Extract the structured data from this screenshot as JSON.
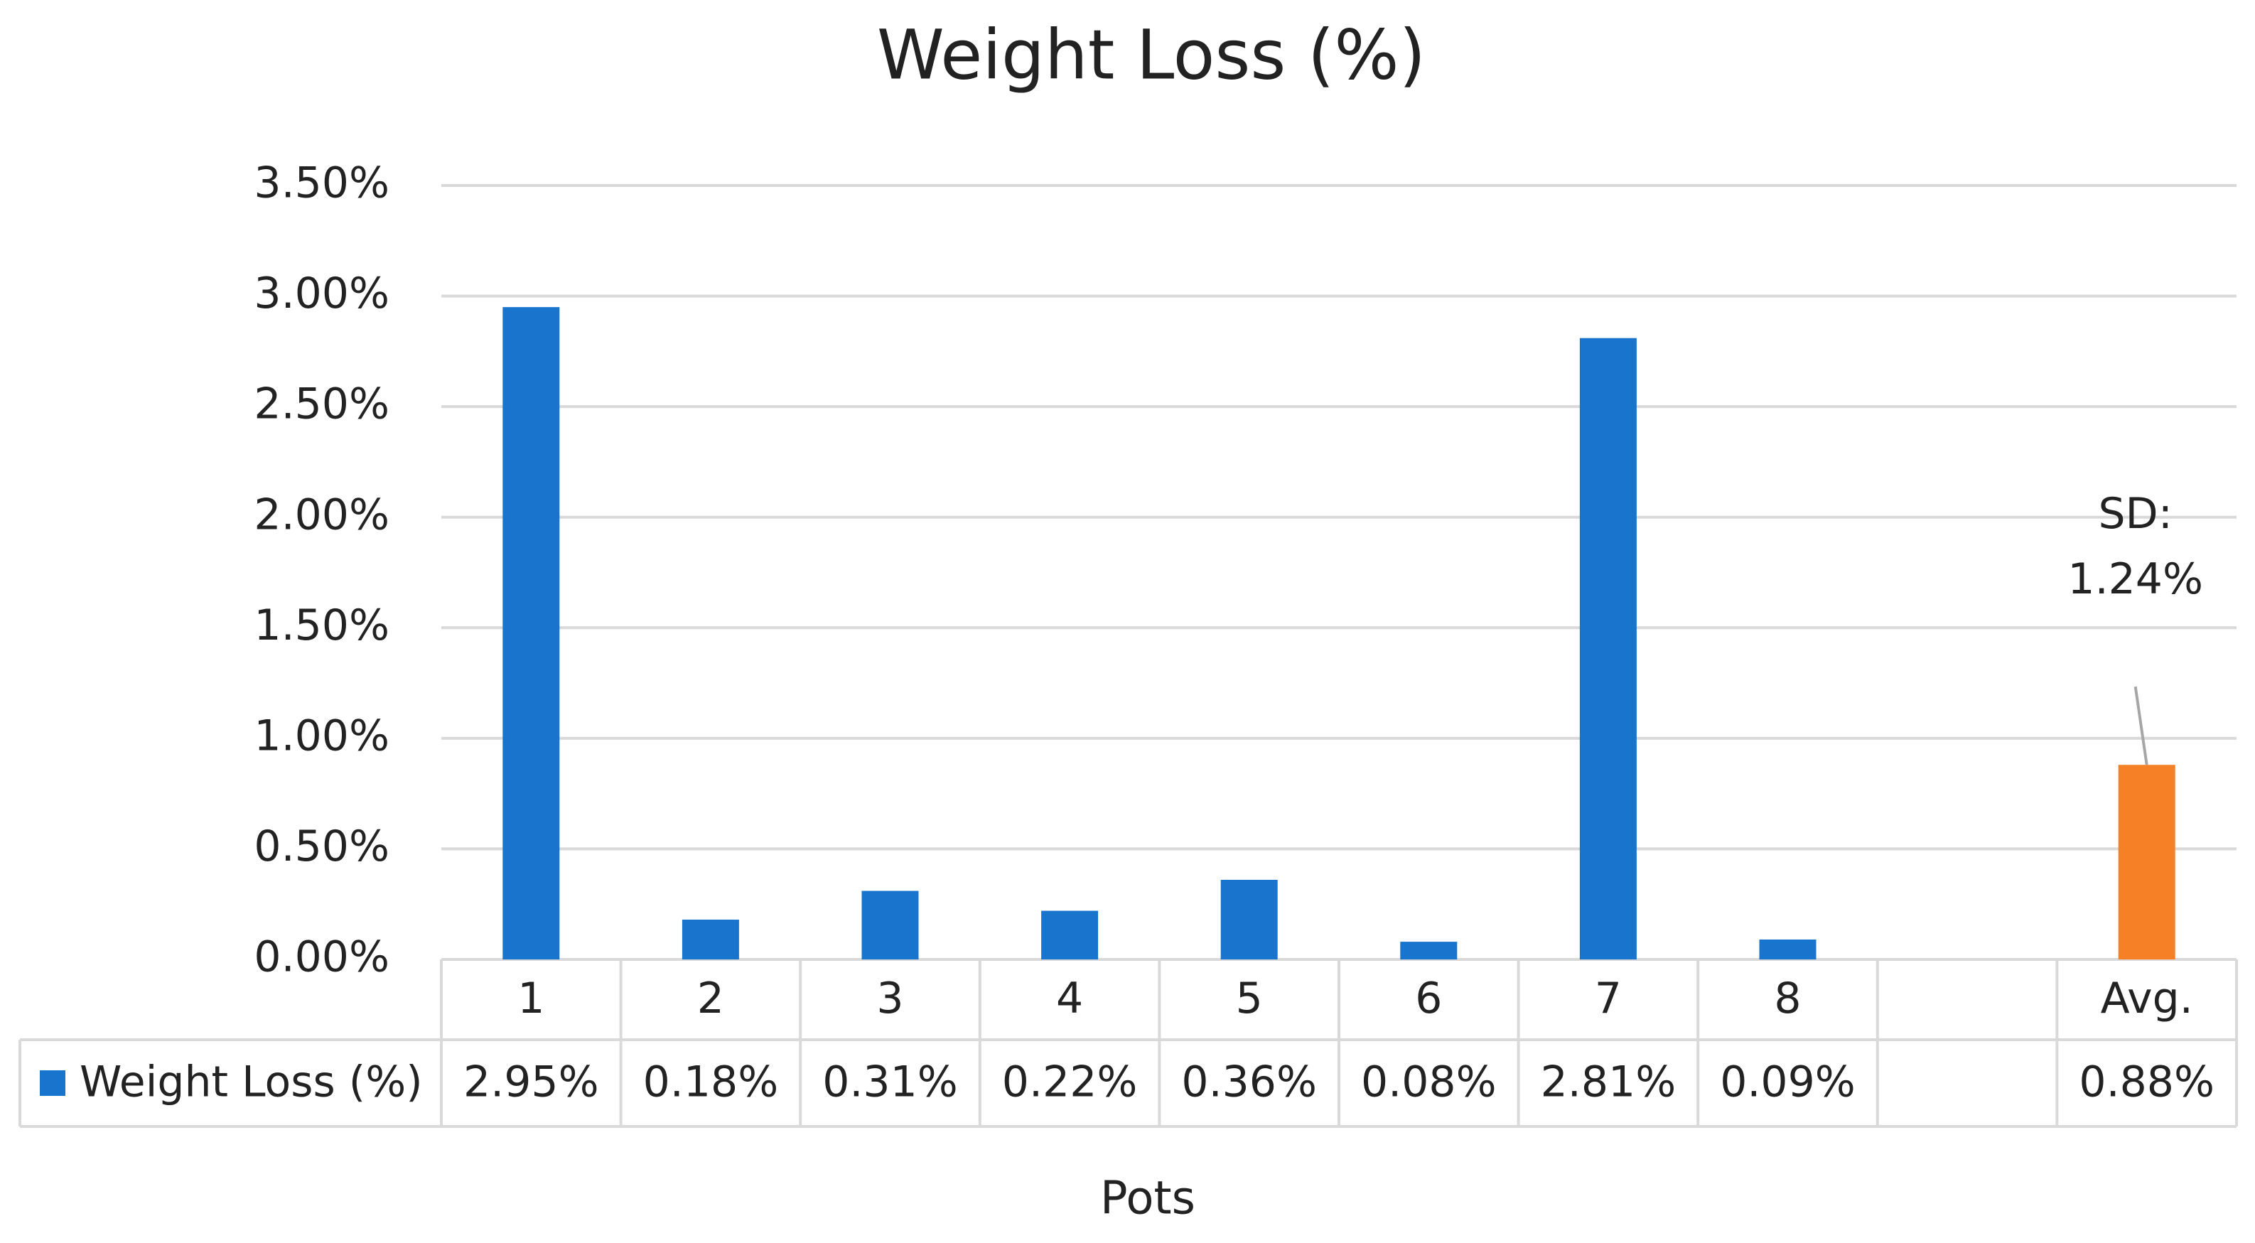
{
  "chart_data": {
    "type": "bar",
    "title": "Weight Loss (%)",
    "x_label": "Pots",
    "categories": [
      "1",
      "2",
      "3",
      "4",
      "5",
      "6",
      "7",
      "8",
      null,
      "Avg."
    ],
    "series": [
      {
        "name": "Weight Loss (%)",
        "color": "#1874cd",
        "values": [
          2.95,
          0.18,
          0.31,
          0.22,
          0.36,
          0.08,
          2.81,
          0.09,
          null,
          0.88
        ],
        "value_labels": [
          "2.95%",
          "0.18%",
          "0.31%",
          "0.22%",
          "0.36%",
          "0.08%",
          "2.81%",
          "0.09%",
          null,
          "0.88%"
        ],
        "colors": [
          "#1874cd",
          "#1874cd",
          "#1874cd",
          "#1874cd",
          "#1874cd",
          "#1874cd",
          "#1874cd",
          "#1874cd",
          null,
          "#f58025"
        ]
      }
    ],
    "annotation": {
      "lines": [
        "SD:",
        "1.24%"
      ],
      "category": "Avg."
    },
    "ylim": [
      0,
      3.5
    ],
    "yticks": [
      {
        "value": 0,
        "label": "0.00%"
      },
      {
        "value": 0.5,
        "label": "0.50%"
      },
      {
        "value": 1,
        "label": "1.00%"
      },
      {
        "value": 1.5,
        "label": "1.50%"
      },
      {
        "value": 2,
        "label": "2.00%"
      },
      {
        "value": 2.5,
        "label": "2.50%"
      },
      {
        "value": 3,
        "label": "3.00%"
      },
      {
        "value": 3.5,
        "label": "3.50%"
      }
    ],
    "grid": true,
    "data_table": true
  }
}
